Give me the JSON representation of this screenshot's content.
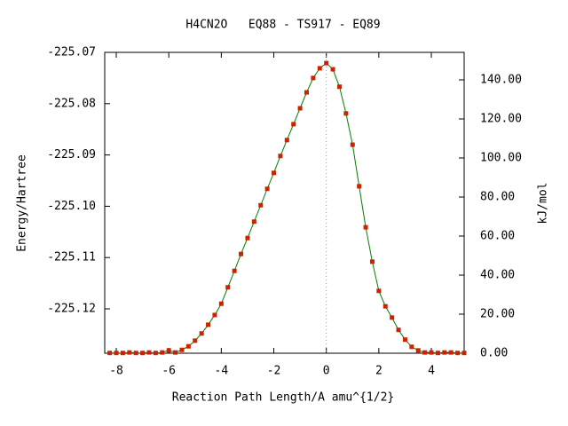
{
  "chart_data": {
    "type": "line",
    "title": "H4CN2O   EQ88 - TS917 - EQ89",
    "xlabel": "Reaction Path Length/A amu^{1/2}",
    "ylabel": "Energy/Hartree",
    "y2label": "kJ/mol",
    "xlim": [
      -8.44,
      5.25
    ],
    "ylim": [
      -225.12865,
      -225.07
    ],
    "y2lim": [
      0,
      154.1
    ],
    "xticks": [
      -8,
      -6,
      -4,
      -2,
      0,
      2,
      4
    ],
    "yticks": [
      {
        "value": -225.07,
        "label": "-225.07"
      },
      {
        "value": -225.08,
        "label": "-225.08"
      },
      {
        "value": -225.09,
        "label": "-225.09"
      },
      {
        "value": -225.1,
        "label": "-225.10"
      },
      {
        "value": -225.11,
        "label": "-225.11"
      },
      {
        "value": -225.12,
        "label": "-225.12"
      }
    ],
    "y2ticks": [
      {
        "value": 0,
        "label": "0.00"
      },
      {
        "value": 20,
        "label": "20.00"
      },
      {
        "value": 40,
        "label": "40.00"
      },
      {
        "value": 60,
        "label": "60.00"
      },
      {
        "value": 80,
        "label": "80.00"
      },
      {
        "value": 100,
        "label": "100.00"
      },
      {
        "value": 120,
        "label": "120.00"
      },
      {
        "value": 140,
        "label": "140.00"
      }
    ],
    "x": [
      -8.25,
      -8.0,
      -7.75,
      -7.5,
      -7.25,
      -7.0,
      -6.75,
      -6.5,
      -6.25,
      -6.0,
      -5.75,
      -5.5,
      -5.25,
      -5.0,
      -4.75,
      -4.5,
      -4.25,
      -4.0,
      -3.75,
      -3.5,
      -3.25,
      -3.0,
      -2.75,
      -2.5,
      -2.25,
      -2.0,
      -1.75,
      -1.5,
      -1.25,
      -1.0,
      -0.75,
      -0.5,
      -0.25,
      0,
      0.25,
      0.5,
      0.75,
      1.0,
      1.25,
      1.5,
      1.75,
      2.0,
      2.25,
      2.5,
      2.75,
      3.0,
      3.25,
      3.5,
      3.75,
      4.0,
      4.25,
      4.5,
      4.75,
      5.0,
      5.25
    ],
    "series": [
      {
        "color": "#008000",
        "marker_color": "#cc2200",
        "values": [
          -225.1286,
          -225.1286,
          -225.1286,
          -225.1285,
          -225.1286,
          -225.1286,
          -225.1285,
          -225.1286,
          -225.1285,
          -225.1281,
          -225.1285,
          -225.128,
          -225.1273,
          -225.1262,
          -225.1248,
          -225.1231,
          -225.1212,
          -225.119,
          -225.1158,
          -225.1126,
          -225.1093,
          -225.1062,
          -225.103,
          -225.0998,
          -225.0966,
          -225.0935,
          -225.0902,
          -225.0871,
          -225.084,
          -225.0809,
          -225.0778,
          -225.075,
          -225.0731,
          -225.0721,
          -225.0733,
          -225.0767,
          -225.0819,
          -225.088,
          -225.0961,
          -225.1041,
          -225.1108,
          -225.1165,
          -225.1195,
          -225.1217,
          -225.1241,
          -225.126,
          -225.1274,
          -225.1281,
          -225.1285,
          -225.1285,
          -225.1286,
          -225.1285,
          -225.1285,
          -225.1286,
          -225.1286
        ]
      }
    ]
  }
}
